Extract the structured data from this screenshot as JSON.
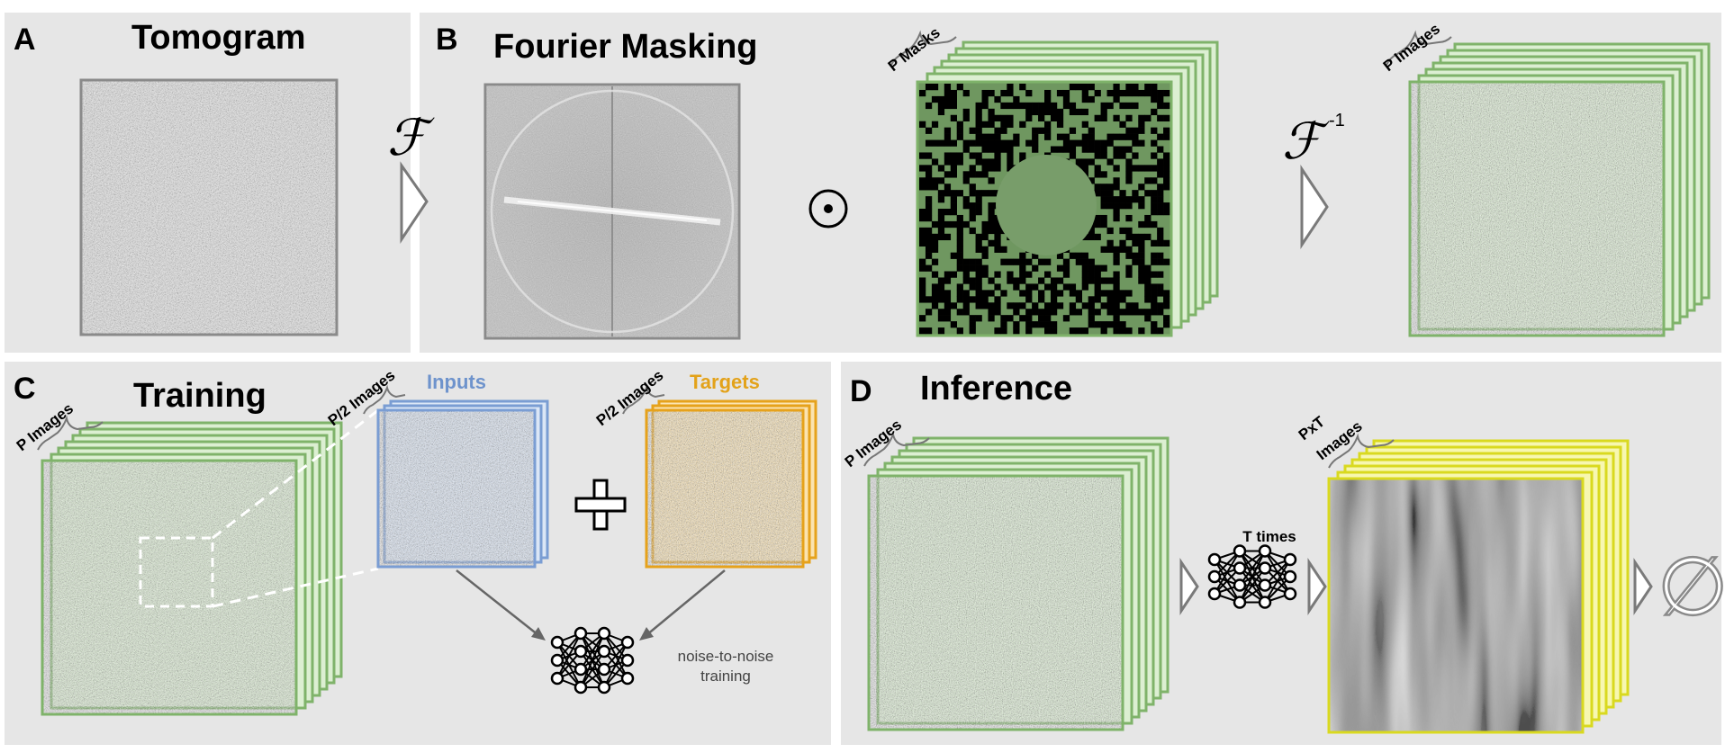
{
  "panels": {
    "a": {
      "letter": "A",
      "title": "Tomogram"
    },
    "b": {
      "letter": "B",
      "title": "Fourier Masking",
      "fourier_symbol": "ℱ",
      "inverse_symbol": "ℱ",
      "inverse_superscript": "-1",
      "multiply_symbol": "⊙",
      "masks_label": "P Masks",
      "images_label": "P Images"
    },
    "c": {
      "letter": "C",
      "title": "Training",
      "images_label": "P Images",
      "half_images_label_inputs": "P/2 Images",
      "half_images_label_targets": "P/2 Images",
      "inputs_label": "Inputs",
      "targets_label": "Targets",
      "plus_symbol": "+",
      "network_caption_line1": "noise-to-noise",
      "network_caption_line2": "training"
    },
    "d": {
      "letter": "D",
      "title": "Inference",
      "images_label": "P Images",
      "times_label": "T times",
      "pxt_label_line1": "PxT",
      "pxt_label_line2": "Images",
      "empty_set_symbol": "∅"
    }
  },
  "colors": {
    "panel_bg": "#e6e6e6",
    "green_border": "#7fb36a",
    "green_fill": "#dcefd2",
    "blue_border": "#7a9dd3",
    "blue_fill": "#dbe6f6",
    "orange_border": "#e6a21b",
    "orange_fill": "#fbe3b0",
    "yellow_border": "#d9d91f",
    "yellow_fill": "#f7f7b0",
    "gray_border": "#8a8a8a",
    "inputs_text": "#6e93cc",
    "targets_text": "#e3a21a"
  },
  "icons": [
    "fourier-transform-symbol",
    "inverse-fourier-symbol",
    "hadamard-product-symbol",
    "forward-arrow-icon",
    "neural-network-icon",
    "plus-icon",
    "empty-set-symbol"
  ]
}
